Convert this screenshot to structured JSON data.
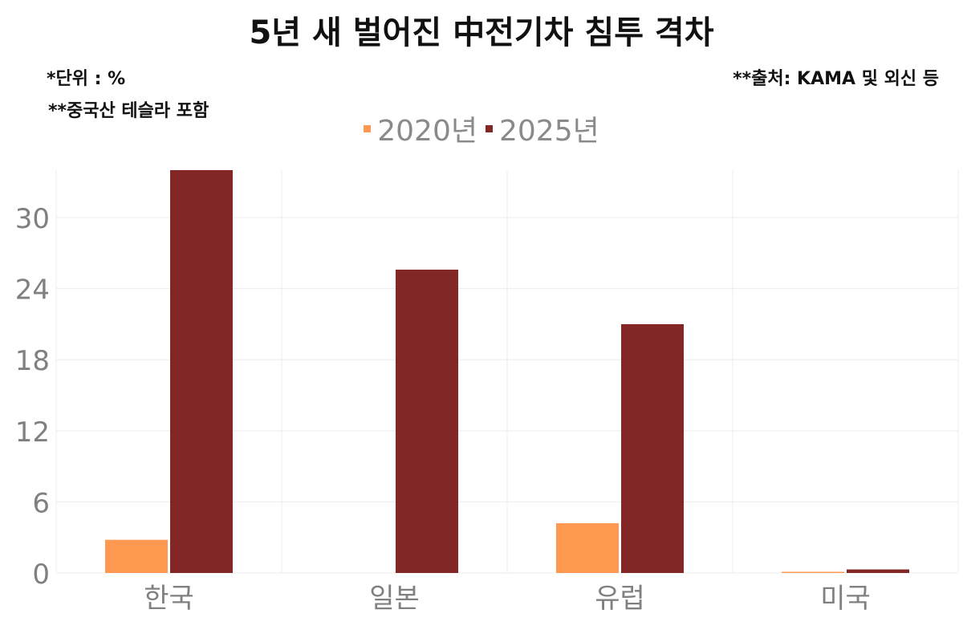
{
  "title": "5년 새 벌어진 中전기차 침투 격차",
  "notes": {
    "unit": "*단위 : %",
    "tesla": "**중국산 테슬라 포함",
    "source": "**출처: KAMA 및 외신 등"
  },
  "colors": {
    "series_2020": "#FF9850",
    "series_2025": "#822626",
    "grid": "#ECECEC",
    "tick_text": "#808080"
  },
  "chart_data": {
    "type": "bar",
    "categories": [
      "한국",
      "일본",
      "유럽",
      "미국"
    ],
    "series": [
      {
        "name": "2020년",
        "values": [
          2.8,
          0,
          4.2,
          0.1
        ]
      },
      {
        "name": "2025년",
        "values": [
          34.0,
          25.6,
          21.0,
          0.3
        ]
      }
    ],
    "title": "5년 새 벌어진 中전기차 침투 격차",
    "xlabel": "",
    "ylabel": "",
    "ylim": [
      0,
      34
    ],
    "yticks": [
      0,
      6,
      12,
      18,
      24,
      30
    ],
    "legend": "top-center",
    "grid": true
  }
}
